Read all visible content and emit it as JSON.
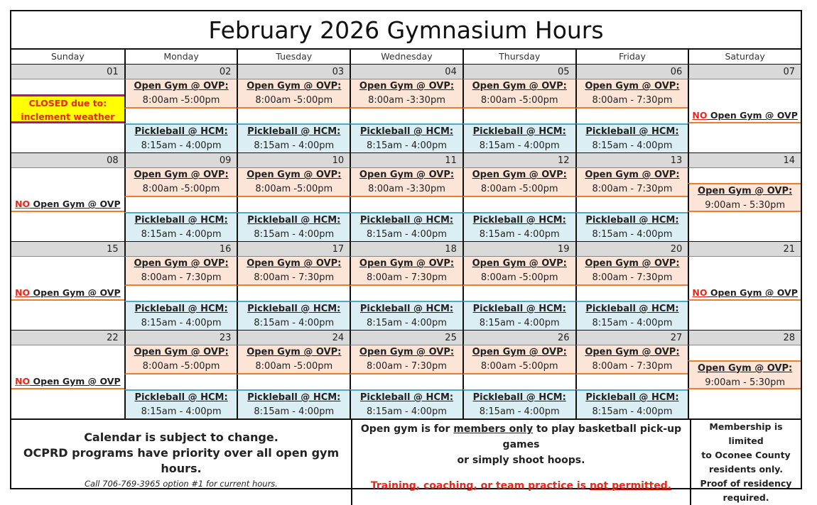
{
  "title": "February 2026 Gymnasium Hours",
  "days": [
    "Sunday",
    "Monday",
    "Tuesday",
    "Wednesday",
    "Thursday",
    "Friday",
    "Saturday"
  ],
  "labels": {
    "open_gym": "Open Gym @ OVP:",
    "pickleball": "Pickleball @ HCM:",
    "no": "NO",
    "no_rest": " Open Gym @ OVP",
    "closed_1": "CLOSED due to:",
    "closed_2": "inclement weather",
    "pickleball_time": "8:15am - 4:00pm"
  },
  "colors": {
    "open_gym_bg": "#fce4d6",
    "open_gym_border": "#ed7d31",
    "pickleball_bg": "#daeef3",
    "pickleball_border": "#4bacc6",
    "closed_bg": "#ffff00",
    "closed_border": "#b0108a",
    "alert_red": "#e8271a",
    "date_bar": "#d9d9d9"
  },
  "weeks": [
    {
      "sun": {
        "date": "01",
        "kind": "closed"
      },
      "weekdays": [
        {
          "date": "02",
          "time": "8:00am -5:00pm"
        },
        {
          "date": "03",
          "time": "8:00am -5:00pm"
        },
        {
          "date": "04",
          "time": "8:00am -3:30pm"
        },
        {
          "date": "05",
          "time": "8:00am -5:00pm"
        },
        {
          "date": "06",
          "time": "8:00am - 7:30pm"
        }
      ],
      "sat": {
        "date": "07",
        "kind": "no"
      }
    },
    {
      "sun": {
        "date": "08",
        "kind": "no"
      },
      "weekdays": [
        {
          "date": "09",
          "time": "8:00am -5:00pm"
        },
        {
          "date": "10",
          "time": "8:00am -5:00pm"
        },
        {
          "date": "11",
          "time": "8:00am -3:30pm"
        },
        {
          "date": "12",
          "time": "8:00am -5:00pm"
        },
        {
          "date": "13",
          "time": "8:00am - 7:30pm"
        }
      ],
      "sat": {
        "date": "14",
        "kind": "open",
        "time": "9:00am - 5:30pm"
      }
    },
    {
      "sun": {
        "date": "15",
        "kind": "no"
      },
      "weekdays": [
        {
          "date": "16",
          "time": "8:00am - 7:30pm"
        },
        {
          "date": "17",
          "time": "8:00am - 7:30pm"
        },
        {
          "date": "18",
          "time": "8:00am - 7:30pm"
        },
        {
          "date": "19",
          "time": "8:00am -5:00pm"
        },
        {
          "date": "20",
          "time": "8:00am - 7:30pm"
        }
      ],
      "sat": {
        "date": "21",
        "kind": "no"
      }
    },
    {
      "sun": {
        "date": "22",
        "kind": "no"
      },
      "weekdays": [
        {
          "date": "23",
          "time": "8:00am -5:00pm"
        },
        {
          "date": "24",
          "time": "8:00am -5:00pm"
        },
        {
          "date": "25",
          "time": "8:00am - 7:30pm"
        },
        {
          "date": "26",
          "time": "8:00am -5:00pm"
        },
        {
          "date": "27",
          "time": "8:00am - 7:30pm"
        }
      ],
      "sat": {
        "date": "28",
        "kind": "open",
        "time": "9:00am - 5:30pm"
      }
    }
  ],
  "footer": {
    "left_1": "Calendar is subject to change.",
    "left_2": "OCPRD programs have priority over all open gym hours.",
    "left_3": "Call 706-769-3965 option #1 for current hours.",
    "mid_1a": "Open gym is for ",
    "mid_1b": "members only",
    "mid_1c": " to play basketball pick-up games",
    "mid_2": "or simply shoot hoops.",
    "mid_3a": "Training, coaching, or team practice is ",
    "mid_3b": "not permitted.",
    "right": [
      "Membership is limited",
      "to Oconee County",
      "residents only.",
      "Proof of residency",
      "required."
    ]
  }
}
